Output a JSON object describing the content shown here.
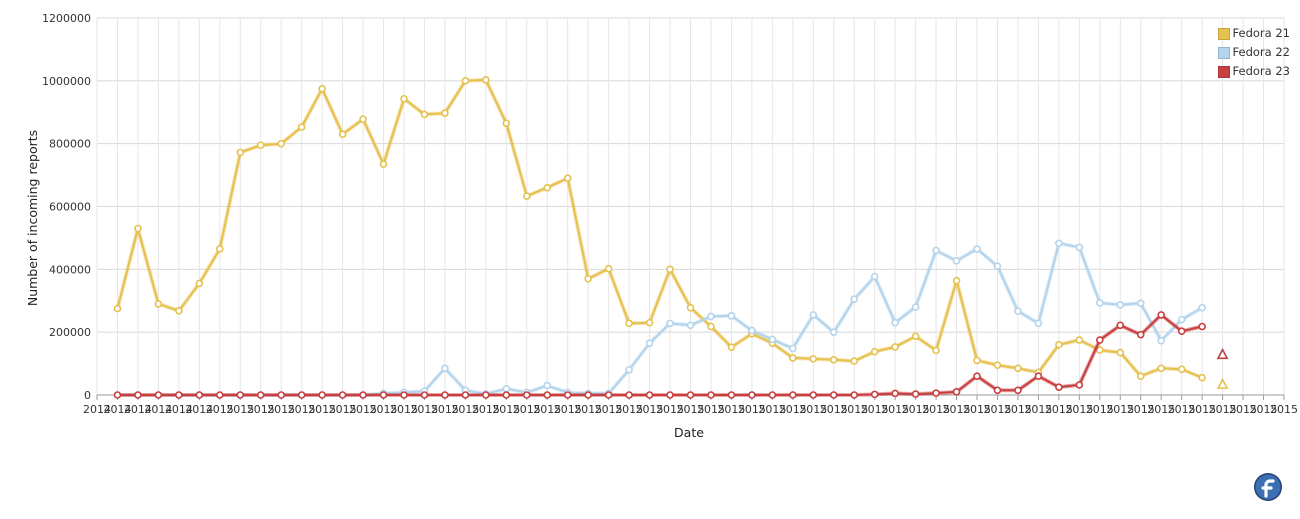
{
  "chart_data": {
    "type": "line",
    "xlabel": "Date",
    "ylabel": "Number of incoming reports",
    "ylim": [
      0,
      1200000
    ],
    "yticks": [
      0,
      200000,
      400000,
      600000,
      800000,
      1000000,
      1200000
    ],
    "ytick_labels": [
      "0",
      "200000",
      "400000",
      "600000",
      "800000",
      "1000000",
      "1200000"
    ],
    "x_tick_labels": [
      "2014",
      "2014",
      "2014",
      "2014",
      "2014",
      "2014",
      "2015",
      "2015",
      "2015",
      "2015",
      "2015",
      "2015",
      "2015",
      "2015",
      "2015",
      "2015",
      "2015",
      "2015",
      "2015",
      "2015",
      "2015",
      "2015",
      "2015",
      "2015",
      "2015",
      "2015",
      "2015",
      "2015",
      "2015",
      "2015",
      "2015",
      "2015",
      "2015",
      "2015",
      "2015",
      "2015",
      "2015",
      "2015",
      "2015",
      "2015",
      "2015",
      "2015",
      "2015",
      "2015",
      "2015",
      "2015",
      "2015",
      "2015",
      "2015",
      "2015",
      "2015",
      "2015",
      "2015",
      "2015",
      "2015",
      "2015",
      "2015",
      "2015",
      "2015"
    ],
    "grid": true,
    "legend_position": "top-right",
    "series": [
      {
        "name": "Fedora 21",
        "color": "#e6c14f",
        "values": [
          275000,
          530000,
          290000,
          268000,
          355000,
          465000,
          772000,
          795000,
          800000,
          853000,
          975000,
          830000,
          878000,
          735000,
          943000,
          893000,
          897000,
          1000000,
          1003000,
          865000,
          633000,
          660000,
          690000,
          370000,
          402000,
          228000,
          230000,
          400000,
          278000,
          218000,
          152000,
          195000,
          165000,
          118000,
          115000,
          112000,
          108000,
          138000,
          153000,
          187000,
          142000,
          364000,
          110000,
          95000,
          85000,
          72000,
          160000,
          175000,
          143000,
          135000,
          60000,
          85000,
          82000,
          55000
        ],
        "final_marker": {
          "value": 33000,
          "shape": "triangle"
        }
      },
      {
        "name": "Fedora 22",
        "color": "#b3d4ec",
        "values": [
          0,
          0,
          0,
          0,
          0,
          0,
          0,
          0,
          0,
          0,
          0,
          0,
          0,
          5000,
          8000,
          12000,
          85000,
          15000,
          3000,
          20000,
          8000,
          30000,
          8000,
          5000,
          5000,
          80000,
          165000,
          228000,
          222000,
          250000,
          252000,
          205000,
          177000,
          148000,
          255000,
          200000,
          305000,
          377000,
          230000,
          280000,
          460000,
          427000,
          465000,
          410000,
          267000,
          228000,
          483000,
          470000,
          293000,
          287000,
          292000,
          173000,
          240000,
          278000
        ],
        "final_marker": {
          "value": 130000,
          "shape": "triangle"
        }
      },
      {
        "name": "Fedora 23",
        "color": "#c83f3f",
        "values": [
          0,
          0,
          0,
          0,
          0,
          0,
          0,
          0,
          0,
          0,
          0,
          0,
          0,
          0,
          0,
          0,
          0,
          0,
          0,
          0,
          0,
          0,
          0,
          0,
          0,
          0,
          0,
          0,
          0,
          0,
          0,
          0,
          0,
          0,
          0,
          0,
          0,
          2000,
          5000,
          3000,
          6000,
          10000,
          60000,
          15000,
          15000,
          60000,
          25000,
          32000,
          175000,
          222000,
          192000,
          255000,
          203000,
          218000
        ],
        "final_marker": {
          "value": 128000,
          "shape": "triangle"
        }
      }
    ]
  }
}
